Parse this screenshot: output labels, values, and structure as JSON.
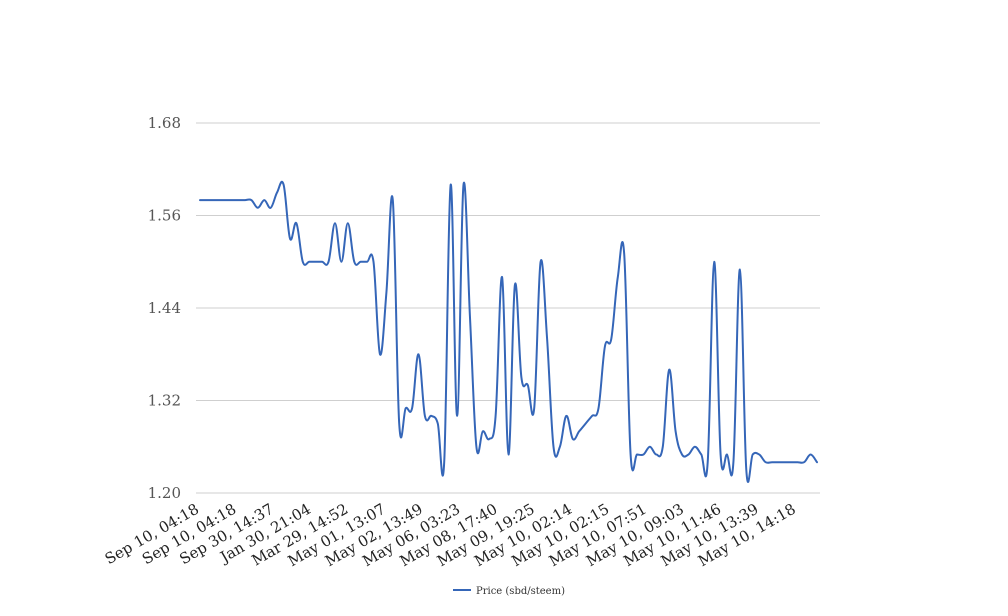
{
  "chart_data": {
    "type": "line",
    "title": "",
    "xlabel": "",
    "ylabel": "",
    "ylim": [
      1.2,
      1.68
    ],
    "y_ticks": [
      "1.20",
      "1.32",
      "1.44",
      "1.56",
      "1.68"
    ],
    "x_ticks": [
      "Sep 10, 04:18",
      "Sep 10, 04:18",
      "Sep 30, 14:37",
      "Jan 30, 21:04",
      "Mar 29, 14:52",
      "May 01, 13:07",
      "May 02, 13:49",
      "May 06, 03:23",
      "May 08, 17:40",
      "May 09, 19:25",
      "May 10, 02:14",
      "May 10, 02:15",
      "May 10, 07:51",
      "May 10, 09:03",
      "May 10, 11:46",
      "May 10, 13:39",
      "May 10, 14:18"
    ],
    "grid": true,
    "legend_position": "bottom",
    "colors": {
      "series": "#3566b8",
      "grid": "#cfcfcf"
    },
    "series": [
      {
        "name": "Price (sbd/steem)",
        "values": [
          1.58,
          1.58,
          1.58,
          1.58,
          1.58,
          1.58,
          1.58,
          1.58,
          1.58,
          1.57,
          1.58,
          1.57,
          1.59,
          1.6,
          1.53,
          1.55,
          1.5,
          1.5,
          1.5,
          1.5,
          1.5,
          1.55,
          1.5,
          1.55,
          1.5,
          1.5,
          1.5,
          1.5,
          1.38,
          1.46,
          1.58,
          1.29,
          1.31,
          1.31,
          1.38,
          1.3,
          1.3,
          1.29,
          1.24,
          1.6,
          1.3,
          1.6,
          1.43,
          1.26,
          1.28,
          1.27,
          1.3,
          1.48,
          1.25,
          1.47,
          1.35,
          1.34,
          1.31,
          1.5,
          1.4,
          1.26,
          1.26,
          1.3,
          1.27,
          1.28,
          1.29,
          1.3,
          1.31,
          1.39,
          1.4,
          1.48,
          1.51,
          1.25,
          1.25,
          1.25,
          1.26,
          1.25,
          1.26,
          1.36,
          1.28,
          1.25,
          1.25,
          1.26,
          1.25,
          1.24,
          1.5,
          1.25,
          1.25,
          1.24,
          1.49,
          1.23,
          1.25,
          1.25,
          1.24,
          1.24,
          1.24,
          1.24,
          1.24,
          1.24,
          1.24,
          1.25,
          1.24
        ]
      }
    ]
  }
}
